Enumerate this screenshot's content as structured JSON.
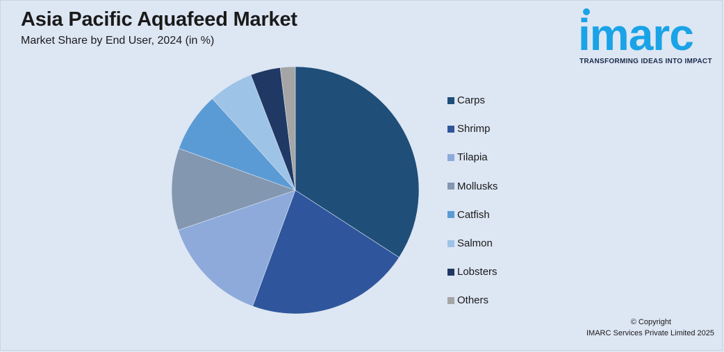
{
  "header": {
    "title": "Asia Pacific Aquafeed Market",
    "subtitle": "Market Share by End User, 2024 (in %)"
  },
  "logo": {
    "word": "imarc",
    "tagline": "TRANSFORMING IDEAS INTO IMPACT",
    "color": "#1aa3e6"
  },
  "footer": {
    "copyright": "© Copyright",
    "company": "IMARC Services Private Limited 2025"
  },
  "chart_data": {
    "type": "pie",
    "title": "Asia Pacific Aquafeed Market",
    "subtitle": "Market Share by End User, 2024 (in %)",
    "legend_position": "right",
    "slices": [
      {
        "label": "Carps",
        "value": 35,
        "color": "#1f4e79"
      },
      {
        "label": "Shrimp",
        "value": 22,
        "color": "#2f569c"
      },
      {
        "label": "Tilapia",
        "value": 14.5,
        "color": "#8eaadb"
      },
      {
        "label": "Mollusks",
        "value": 11,
        "color": "#8497b0"
      },
      {
        "label": "Catfish",
        "value": 8,
        "color": "#5b9bd5"
      },
      {
        "label": "Salmon",
        "value": 6,
        "color": "#9dc3e6"
      },
      {
        "label": "Lobsters",
        "value": 4,
        "color": "#203864"
      },
      {
        "label": "Others",
        "value": 2,
        "color": "#a5a5a5"
      }
    ]
  }
}
